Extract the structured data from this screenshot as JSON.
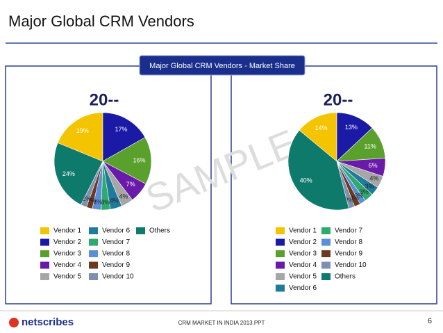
{
  "slide": {
    "title": "Major Global CRM Vendors",
    "banner": "Major Global CRM Vendors - Market Share",
    "watermark": "SAMPLE",
    "logo": "netscribes",
    "footer": "CRM MARKET IN INDIA 2013.PPT",
    "page": "6"
  },
  "chart_data": [
    {
      "type": "pie",
      "title": "20--",
      "categories": [
        "Vendor 1",
        "Vendor 2",
        "Vendor 3",
        "Vendor 4",
        "Vendor 5",
        "Vendor 6",
        "Vendor 7",
        "Vendor 8",
        "Vendor 9",
        "Vendor 10",
        "Others"
      ],
      "values": [
        19,
        17,
        16,
        7,
        4,
        4,
        3,
        3,
        2,
        2,
        24
      ],
      "value_labels": [
        "19%",
        "17%",
        "16%",
        "7%",
        "4%",
        "4%",
        "3%",
        "3%",
        "2%",
        "2%",
        "24%"
      ],
      "colors": [
        "#f5c400",
        "#1a1aa6",
        "#5aa02c",
        "#6a1aa8",
        "#a6a6a6",
        "#1f7a9c",
        "#2eaa6e",
        "#5b8fd9",
        "#6b3a1f",
        "#7f8fb0",
        "#0e7a6c"
      ]
    },
    {
      "type": "pie",
      "title": "20--",
      "categories": [
        "Vendor 1",
        "Vendor 2",
        "Vendor 3",
        "Vendor 4",
        "Vendor 5",
        "Vendor 6",
        "Vendor 7",
        "Vendor 8",
        "Vendor 9",
        "Vendor 10",
        "Others"
      ],
      "values": [
        14,
        13,
        11,
        6,
        4,
        3,
        3,
        2,
        2,
        2,
        40
      ],
      "value_labels": [
        "14%",
        "13%",
        "11%",
        "6%",
        "4%",
        "3%",
        "3%",
        "2%",
        "2%",
        "2%",
        "40%"
      ],
      "colors": [
        "#f5c400",
        "#1a1aa6",
        "#5aa02c",
        "#6a1aa8",
        "#a6a6a6",
        "#1f7a9c",
        "#2eaa6e",
        "#5b8fd9",
        "#6b3a1f",
        "#7f8fb0",
        "#0e7a6c"
      ]
    }
  ]
}
